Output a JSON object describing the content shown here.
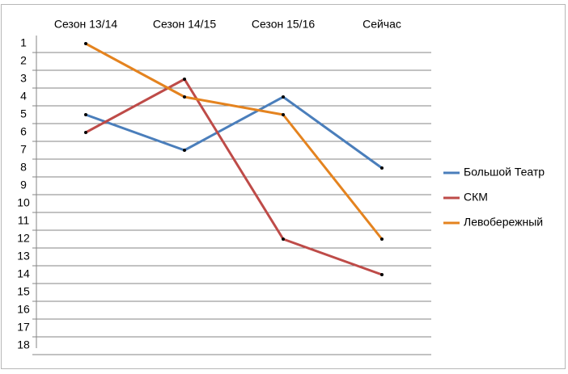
{
  "chart_data": {
    "type": "line",
    "categories": [
      "Сезон 13/14",
      "Сезон 14/15",
      "Сезон 15/16",
      "Сейчас"
    ],
    "series": [
      {
        "name": "Большой Театр",
        "color": "#4a7ebb",
        "values": [
          5,
          7,
          4,
          8
        ]
      },
      {
        "name": "СКМ",
        "color": "#be4b48",
        "values": [
          6,
          3,
          12,
          14
        ]
      },
      {
        "name": "Левобережный",
        "color": "#e4831f",
        "values": [
          1,
          4,
          5,
          12
        ]
      }
    ],
    "ylim": [
      1,
      18
    ],
    "y_reversed": true,
    "yticks": [
      1,
      2,
      3,
      4,
      5,
      6,
      7,
      8,
      9,
      10,
      11,
      12,
      13,
      14,
      15,
      16,
      17,
      18
    ],
    "grid": true,
    "legend": "right"
  }
}
